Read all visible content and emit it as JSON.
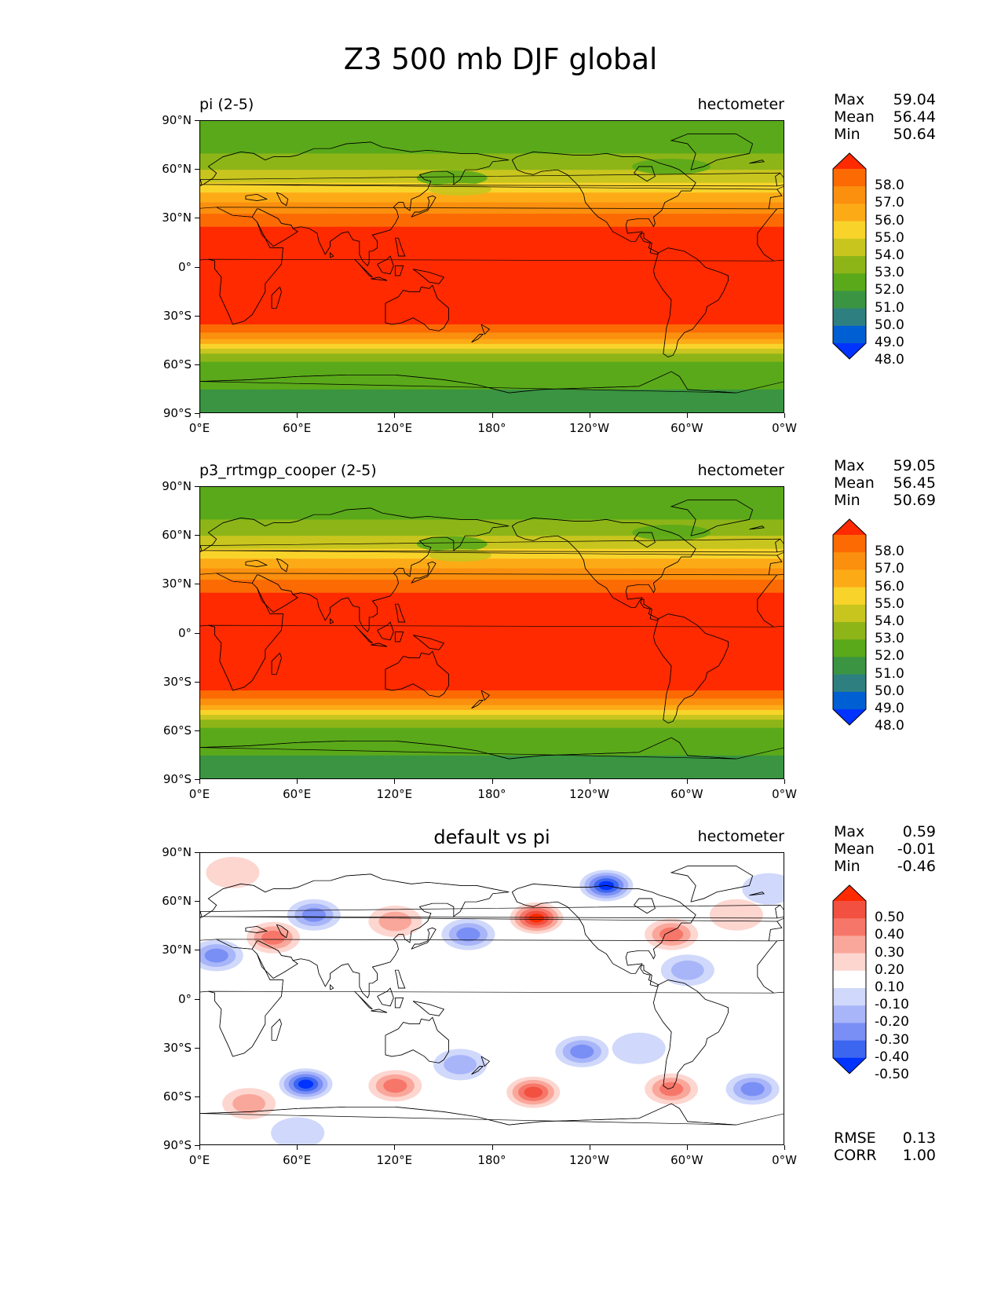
{
  "figure": {
    "title": "Z3 500 mb DJF global"
  },
  "axes": {
    "yticks": [
      "90°N",
      "60°N",
      "30°N",
      "0°",
      "30°S",
      "60°S",
      "90°S"
    ],
    "xticks": [
      "0°E",
      "60°E",
      "120°E",
      "180°",
      "120°W",
      "60°W",
      "0°W"
    ]
  },
  "colors": {
    "abs_levels": [
      "#0033ff",
      "#005fd2",
      "#2e8080",
      "#3a9442",
      "#5aa91a",
      "#8db518",
      "#c8c51e",
      "#f8d42b",
      "#fcab17",
      "#fb8f0e",
      "#fc6a04",
      "#ff2a00"
    ],
    "diff_levels": [
      "#0033ff",
      "#3d66f0",
      "#7a8ff5",
      "#a8b5f8",
      "#d0d8fb",
      "#ffffff",
      "#fdd6d0",
      "#faa79b",
      "#f6776a",
      "#f25040",
      "#ff2a00"
    ],
    "coast": "#000000"
  },
  "chart_data": [
    {
      "type": "heatmap",
      "title": "pi (2-5)",
      "units": "hectometer",
      "stats": [
        {
          "label": "Max",
          "value": "59.04"
        },
        {
          "label": "Mean",
          "value": "56.44"
        },
        {
          "label": "Min",
          "value": "50.64"
        }
      ],
      "colorbar": {
        "labels": [
          "58.0",
          "57.0",
          "56.0",
          "55.0",
          "54.0",
          "53.0",
          "52.0",
          "51.0",
          "50.0",
          "49.0",
          "48.0"
        ],
        "extend": "both"
      },
      "zonal_bands": [
        {
          "lat": [
            90,
            70
          ],
          "value": 51.5
        },
        {
          "lat": [
            70,
            60
          ],
          "value": 52.5
        },
        {
          "lat": [
            60,
            52
          ],
          "value": 53.5
        },
        {
          "lat": [
            52,
            46
          ],
          "value": 54.5
        },
        {
          "lat": [
            46,
            40
          ],
          "value": 55.5
        },
        {
          "lat": [
            40,
            33
          ],
          "value": 56.5
        },
        {
          "lat": [
            33,
            25
          ],
          "value": 57.5
        },
        {
          "lat": [
            25,
            -35
          ],
          "value": 58.5
        },
        {
          "lat": [
            -35,
            -40
          ],
          "value": 57.5
        },
        {
          "lat": [
            -40,
            -44
          ],
          "value": 56.5
        },
        {
          "lat": [
            -44,
            -47
          ],
          "value": 55.5
        },
        {
          "lat": [
            -47,
            -50
          ],
          "value": 54.5
        },
        {
          "lat": [
            -50,
            -53
          ],
          "value": 53.5
        },
        {
          "lat": [
            -53,
            -58
          ],
          "value": 52.5
        },
        {
          "lat": [
            -58,
            -75
          ],
          "value": 51.5
        },
        {
          "lat": [
            -75,
            -90
          ],
          "value": 50.5
        }
      ]
    },
    {
      "type": "heatmap",
      "title": "p3_rrtmgp_cooper (2-5)",
      "units": "hectometer",
      "stats": [
        {
          "label": "Max",
          "value": "59.05"
        },
        {
          "label": "Mean",
          "value": "56.45"
        },
        {
          "label": "Min",
          "value": "50.69"
        }
      ],
      "colorbar": {
        "labels": [
          "58.0",
          "57.0",
          "56.0",
          "55.0",
          "54.0",
          "53.0",
          "52.0",
          "51.0",
          "50.0",
          "49.0",
          "48.0"
        ],
        "extend": "both"
      },
      "zonal_bands": [
        {
          "lat": [
            90,
            70
          ],
          "value": 51.5
        },
        {
          "lat": [
            70,
            60
          ],
          "value": 52.5
        },
        {
          "lat": [
            60,
            52
          ],
          "value": 53.5
        },
        {
          "lat": [
            52,
            46
          ],
          "value": 54.5
        },
        {
          "lat": [
            46,
            40
          ],
          "value": 55.5
        },
        {
          "lat": [
            40,
            33
          ],
          "value": 56.5
        },
        {
          "lat": [
            33,
            25
          ],
          "value": 57.5
        },
        {
          "lat": [
            25,
            -35
          ],
          "value": 58.5
        },
        {
          "lat": [
            -35,
            -40
          ],
          "value": 57.5
        },
        {
          "lat": [
            -40,
            -44
          ],
          "value": 56.5
        },
        {
          "lat": [
            -44,
            -47
          ],
          "value": 55.5
        },
        {
          "lat": [
            -47,
            -50
          ],
          "value": 54.5
        },
        {
          "lat": [
            -50,
            -53
          ],
          "value": 53.5
        },
        {
          "lat": [
            -53,
            -58
          ],
          "value": 52.5
        },
        {
          "lat": [
            -58,
            -75
          ],
          "value": 51.5
        },
        {
          "lat": [
            -75,
            -90
          ],
          "value": 50.5
        }
      ]
    },
    {
      "type": "heatmap",
      "title": "default vs pi",
      "units": "hectometer",
      "stats": [
        {
          "label": "Max",
          "value": "0.59"
        },
        {
          "label": "Mean",
          "value": "-0.01"
        },
        {
          "label": "Min",
          "value": "-0.46"
        }
      ],
      "colorbar": {
        "labels": [
          "0.50",
          "0.40",
          "0.30",
          "0.20",
          "0.10",
          "-0.10",
          "-0.20",
          "-0.30",
          "-0.40",
          "-0.50"
        ],
        "extend": "both"
      },
      "metrics": [
        {
          "label": "RMSE",
          "value": "0.13"
        },
        {
          "label": "CORR",
          "value": "1.00"
        }
      ],
      "anomalies": [
        {
          "lon": 20,
          "lat": 78,
          "value": 0.15
        },
        {
          "lon": 45,
          "lat": 38,
          "value": 0.35
        },
        {
          "lon": 10,
          "lat": 27,
          "value": -0.3
        },
        {
          "lon": 70,
          "lat": 52,
          "value": -0.25
        },
        {
          "lon": 120,
          "lat": 48,
          "value": 0.2
        },
        {
          "lon": 165,
          "lat": 40,
          "value": -0.35
        },
        {
          "lon": 207,
          "lat": 50,
          "value": 0.45
        },
        {
          "lon": 250,
          "lat": 70,
          "value": -0.45
        },
        {
          "lon": 290,
          "lat": 40,
          "value": 0.35
        },
        {
          "lon": 300,
          "lat": 18,
          "value": -0.2
        },
        {
          "lon": 330,
          "lat": 52,
          "value": 0.15
        },
        {
          "lon": 350,
          "lat": 68,
          "value": -0.15
        },
        {
          "lon": 65,
          "lat": -52,
          "value": -0.45
        },
        {
          "lon": 120,
          "lat": -53,
          "value": 0.35
        },
        {
          "lon": 160,
          "lat": -40,
          "value": -0.2
        },
        {
          "lon": 205,
          "lat": -57,
          "value": 0.4
        },
        {
          "lon": 235,
          "lat": -32,
          "value": -0.25
        },
        {
          "lon": 290,
          "lat": -55,
          "value": 0.35
        },
        {
          "lon": 340,
          "lat": -55,
          "value": -0.35
        },
        {
          "lon": 30,
          "lat": -64,
          "value": 0.2
        },
        {
          "lon": 60,
          "lat": -82,
          "value": -0.15
        },
        {
          "lon": 270,
          "lat": -30,
          "value": -0.15
        }
      ]
    }
  ]
}
